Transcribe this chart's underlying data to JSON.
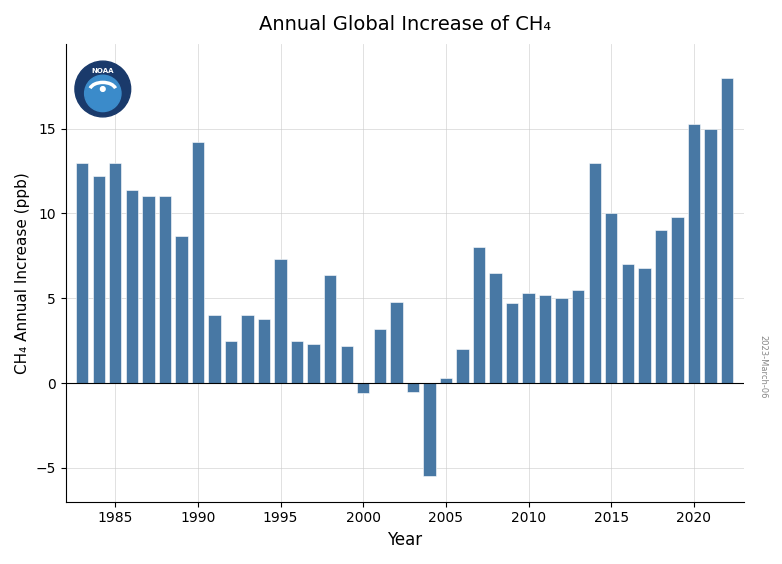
{
  "title": "Annual Global Increase of CH₄",
  "xlabel": "Year",
  "ylabel": "CH₄ Annual Increase (ppb)",
  "bar_color": "#4878a4",
  "background_color": "#ffffff",
  "years": [
    1983,
    1984,
    1985,
    1986,
    1987,
    1988,
    1989,
    1990,
    1991,
    1992,
    1993,
    1994,
    1995,
    1996,
    1997,
    1998,
    1999,
    2000,
    2001,
    2002,
    2003,
    2004,
    2005,
    2006,
    2007,
    2008,
    2009,
    2010,
    2011,
    2012,
    2013,
    2014,
    2015,
    2016,
    2017,
    2018,
    2019,
    2020,
    2021,
    2022
  ],
  "values": [
    13.0,
    12.2,
    13.0,
    11.4,
    11.0,
    11.0,
    8.7,
    14.2,
    4.0,
    2.5,
    4.0,
    3.8,
    7.3,
    2.5,
    2.3,
    6.4,
    2.2,
    -0.6,
    3.2,
    4.8,
    -0.5,
    -5.5,
    0.3,
    2.0,
    8.0,
    6.5,
    4.7,
    5.3,
    5.2,
    5.0,
    5.5,
    13.0,
    10.0,
    7.0,
    6.8,
    9.0,
    9.8,
    15.3,
    15.0,
    18.0
  ],
  "ylim": [
    -7,
    20
  ],
  "yticks": [
    -5,
    0,
    5,
    10,
    15
  ],
  "xticks": [
    1985,
    1990,
    1995,
    2000,
    2005,
    2010,
    2015,
    2020
  ],
  "xlim": [
    1982,
    2023
  ],
  "date_label": "2023-March-06",
  "logo_navy": "#1a3a6b",
  "logo_blue": "#3b8bca",
  "logo_text_color": "#ffffff"
}
